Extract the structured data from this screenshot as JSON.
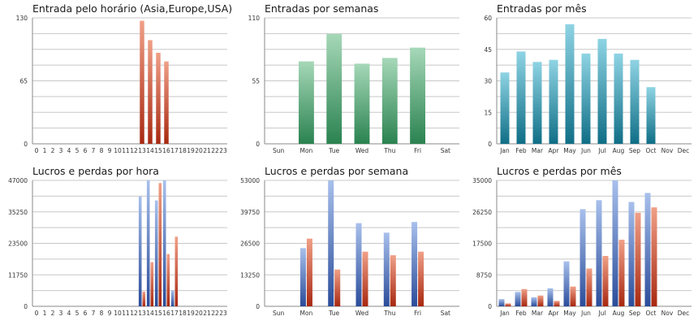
{
  "colors": {
    "hour_top": "#f0a088",
    "hour_bottom": "#a82810",
    "week_top": "#a6d8b8",
    "week_bottom": "#2a8250",
    "month_top": "#8fd4e4",
    "month_bottom": "#0f6e86",
    "blue_top": "#a8c0ec",
    "blue_bottom": "#2a4c9a",
    "red_top": "#f0a088",
    "red_bottom": "#a82810"
  },
  "chart_data": [
    {
      "type": "bar",
      "title": "Entrada pelo horário (Asia,Europe,USA)",
      "categories": [
        "0",
        "1",
        "2",
        "3",
        "4",
        "5",
        "6",
        "7",
        "8",
        "9",
        "10",
        "11",
        "12",
        "13",
        "14",
        "15",
        "16",
        "17",
        "18",
        "19",
        "20",
        "21",
        "22",
        "23"
      ],
      "series": [
        {
          "values": [
            0,
            0,
            0,
            0,
            0,
            0,
            0,
            0,
            0,
            0,
            0,
            0,
            0,
            127,
            107,
            94,
            85,
            0,
            0,
            0,
            0,
            0,
            0,
            0
          ]
        }
      ],
      "ylim": [
        0,
        130
      ],
      "yticks": [
        "0",
        "65",
        "130"
      ],
      "grid": true
    },
    {
      "type": "bar",
      "title": "Entradas por semanas",
      "categories": [
        "Sun",
        "Mon",
        "Tue",
        "Wed",
        "Thu",
        "Fri",
        "Sat"
      ],
      "series": [
        {
          "values": [
            0,
            72,
            96,
            70,
            75,
            84,
            0
          ]
        }
      ],
      "ylim": [
        0,
        110
      ],
      "yticks": [
        "0",
        "55",
        "110"
      ],
      "grid": true
    },
    {
      "type": "bar",
      "title": "Entradas por mês",
      "categories": [
        "Jan",
        "Feb",
        "Mar",
        "Apr",
        "May",
        "Jun",
        "Jul",
        "Aug",
        "Sep",
        "Oct",
        "Nov",
        "Dec"
      ],
      "series": [
        {
          "values": [
            34,
            44,
            39,
            40,
            57,
            43,
            50,
            43,
            40,
            27,
            0,
            0
          ]
        }
      ],
      "ylim": [
        0,
        60
      ],
      "yticks": [
        "0",
        "15",
        "30",
        "45",
        "60"
      ],
      "grid": true
    },
    {
      "type": "bar",
      "title": "Lucros e perdas por hora",
      "categories": [
        "0",
        "1",
        "2",
        "3",
        "4",
        "5",
        "6",
        "7",
        "8",
        "9",
        "10",
        "11",
        "12",
        "13",
        "14",
        "15",
        "16",
        "17",
        "18",
        "19",
        "20",
        "21",
        "22",
        "23"
      ],
      "series": [
        {
          "values": [
            0,
            0,
            0,
            0,
            0,
            0,
            0,
            0,
            0,
            0,
            0,
            0,
            0,
            41000,
            47000,
            39500,
            47000,
            6000,
            0,
            0,
            0,
            0,
            0,
            0
          ]
        },
        {
          "values": [
            0,
            0,
            0,
            0,
            0,
            0,
            0,
            0,
            0,
            0,
            0,
            0,
            0,
            5500,
            16500,
            46000,
            19500,
            26000,
            0,
            0,
            0,
            0,
            0,
            0
          ]
        }
      ],
      "ylim": [
        0,
        47000
      ],
      "yticks": [
        "0",
        "11750",
        "23500",
        "35250",
        "47000"
      ],
      "grid": true
    },
    {
      "type": "bar",
      "title": "Lucros e perdas por semana",
      "categories": [
        "Sun",
        "Mon",
        "Tue",
        "Wed",
        "Thu",
        "Fri",
        "Sat"
      ],
      "series": [
        {
          "values": [
            0,
            24500,
            53000,
            35000,
            31000,
            35500,
            0
          ]
        },
        {
          "values": [
            0,
            28500,
            15500,
            23000,
            21500,
            23000,
            0
          ]
        }
      ],
      "ylim": [
        0,
        53000
      ],
      "yticks": [
        "0",
        "13250",
        "26500",
        "39750",
        "53000"
      ],
      "grid": true
    },
    {
      "type": "bar",
      "title": "Lucros e perdas por mês",
      "categories": [
        "Jan",
        "Feb",
        "Mar",
        "Apr",
        "May",
        "Jun",
        "Jul",
        "Aug",
        "Sep",
        "Oct",
        "Nov",
        "Dec"
      ],
      "series": [
        {
          "values": [
            2000,
            4000,
            2500,
            5000,
            12500,
            27000,
            29500,
            35000,
            29000,
            31500,
            0,
            0
          ]
        },
        {
          "values": [
            800,
            4800,
            3000,
            1500,
            5500,
            10500,
            14000,
            18500,
            26000,
            27500,
            0,
            0
          ]
        }
      ],
      "ylim": [
        0,
        35000
      ],
      "yticks": [
        "0",
        "8750",
        "17500",
        "26250",
        "35000"
      ],
      "grid": true
    }
  ]
}
